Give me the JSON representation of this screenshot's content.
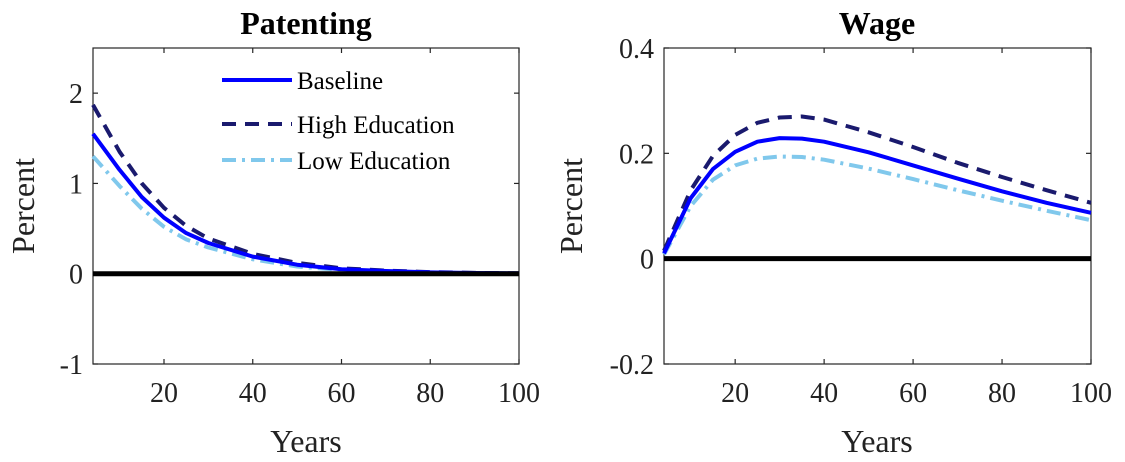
{
  "chart_data": [
    {
      "type": "line",
      "title": "Patenting",
      "xlabel": "Years",
      "ylabel": "Percent",
      "xlim": [
        4,
        100
      ],
      "ylim": [
        -1,
        2.5
      ],
      "xticks": [
        20,
        40,
        60,
        80,
        100
      ],
      "yticks": [
        -1,
        0,
        1,
        2
      ],
      "grid": false,
      "legend": "top-right",
      "reference_line": {
        "y": 0,
        "color": "#000000"
      },
      "x": [
        4,
        10,
        15,
        20,
        25,
        30,
        40,
        50,
        60,
        70,
        80,
        90,
        100
      ],
      "series": [
        {
          "name": "Baseline",
          "color": "#0000ff",
          "style": "solid",
          "values": [
            1.55,
            1.15,
            0.85,
            0.62,
            0.45,
            0.34,
            0.19,
            0.1,
            0.05,
            0.03,
            0.015,
            0.008,
            0.004
          ]
        },
        {
          "name": "High Education",
          "color": "#1a1a6e",
          "style": "dashed",
          "values": [
            1.87,
            1.35,
            1.0,
            0.73,
            0.53,
            0.39,
            0.22,
            0.12,
            0.06,
            0.035,
            0.018,
            0.009,
            0.005
          ]
        },
        {
          "name": "Low Education",
          "color": "#80c8ec",
          "style": "dashdot",
          "values": [
            1.3,
            0.97,
            0.72,
            0.52,
            0.38,
            0.29,
            0.16,
            0.08,
            0.04,
            0.025,
            0.012,
            0.006,
            0.003
          ]
        }
      ]
    },
    {
      "type": "line",
      "title": "Wage",
      "xlabel": "Years",
      "ylabel": "Percent",
      "xlim": [
        4,
        100
      ],
      "ylim": [
        -0.2,
        0.4
      ],
      "xticks": [
        20,
        40,
        60,
        80,
        100
      ],
      "yticks": [
        -0.2,
        0,
        0.2,
        0.4
      ],
      "grid": false,
      "reference_line": {
        "y": 0,
        "color": "#000000"
      },
      "x": [
        4,
        10,
        15,
        20,
        25,
        30,
        35,
        40,
        50,
        60,
        70,
        80,
        90,
        100
      ],
      "series": [
        {
          "name": "Baseline",
          "color": "#0000ff",
          "style": "solid",
          "values": [
            0.01,
            0.115,
            0.17,
            0.203,
            0.222,
            0.229,
            0.228,
            0.222,
            0.202,
            0.177,
            0.152,
            0.128,
            0.106,
            0.087
          ]
        },
        {
          "name": "High Education",
          "color": "#1a1a6e",
          "style": "dashed",
          "values": [
            0.015,
            0.13,
            0.195,
            0.235,
            0.258,
            0.268,
            0.27,
            0.264,
            0.24,
            0.212,
            0.182,
            0.155,
            0.13,
            0.106
          ]
        },
        {
          "name": "Low Education",
          "color": "#80c8ec",
          "style": "dashdot",
          "values": [
            0.008,
            0.1,
            0.15,
            0.177,
            0.19,
            0.194,
            0.193,
            0.188,
            0.171,
            0.151,
            0.13,
            0.11,
            0.091,
            0.073
          ]
        }
      ]
    }
  ]
}
